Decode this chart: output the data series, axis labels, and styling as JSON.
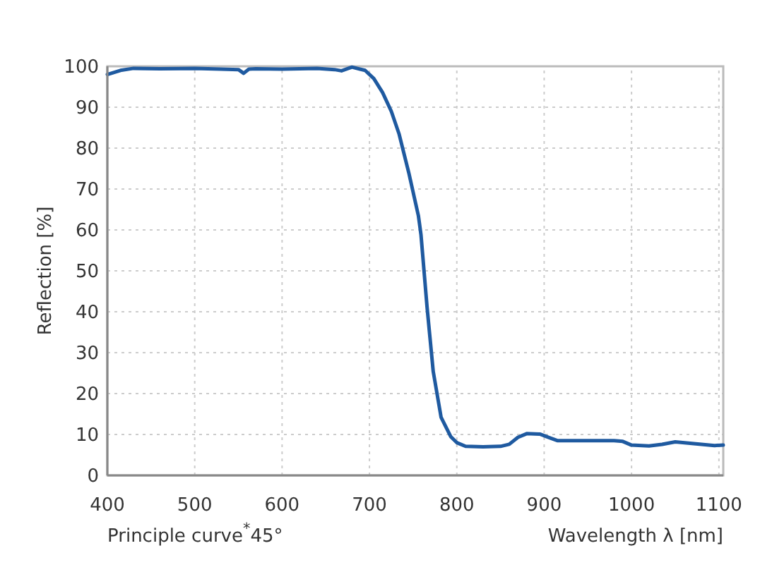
{
  "chart_data": {
    "type": "line",
    "ylabel": "Reflection [%]",
    "xlabel": "Wavelength λ [nm]",
    "annotations": [
      "Principle curve$^{*}$45°"
    ],
    "x": [
      400,
      415,
      430,
      460,
      500,
      530,
      550,
      556,
      562,
      570,
      600,
      640,
      660,
      668,
      680,
      695,
      705,
      715,
      725,
      734,
      745,
      756,
      759,
      766,
      773,
      782,
      793,
      800,
      810,
      830,
      850,
      860,
      870,
      880,
      895,
      905,
      915,
      950,
      980,
      990,
      1000,
      1020,
      1035,
      1050,
      1065,
      1080,
      1095,
      1105
    ],
    "series": [
      {
        "color": "#1f5aa0",
        "values": [
          98,
          99,
          99.5,
          99.4,
          99.5,
          99.3,
          99.2,
          98.3,
          99.3,
          99.4,
          99.3,
          99.5,
          99.2,
          98.9,
          99.8,
          99,
          97,
          93.6,
          89,
          83.4,
          74,
          63.5,
          58.8,
          41,
          25.4,
          14.2,
          9.5,
          8,
          7.1,
          7,
          7.1,
          7.6,
          9.3,
          10.2,
          10.1,
          9.3,
          8.5,
          8.5,
          8.5,
          8.3,
          7.4,
          7.2,
          7.6,
          8.2,
          7.9,
          7.6,
          7.3,
          7.4
        ]
      }
    ],
    "xlim": [
      400,
      1105
    ],
    "ylim": [
      0,
      100
    ],
    "xticks": [
      400,
      500,
      600,
      700,
      800,
      900,
      1000,
      1100
    ],
    "yticks": [
      0,
      10,
      20,
      30,
      40,
      50,
      60,
      70,
      80,
      90,
      100
    ],
    "grid": true,
    "line_style": "solid",
    "marker": "none"
  }
}
